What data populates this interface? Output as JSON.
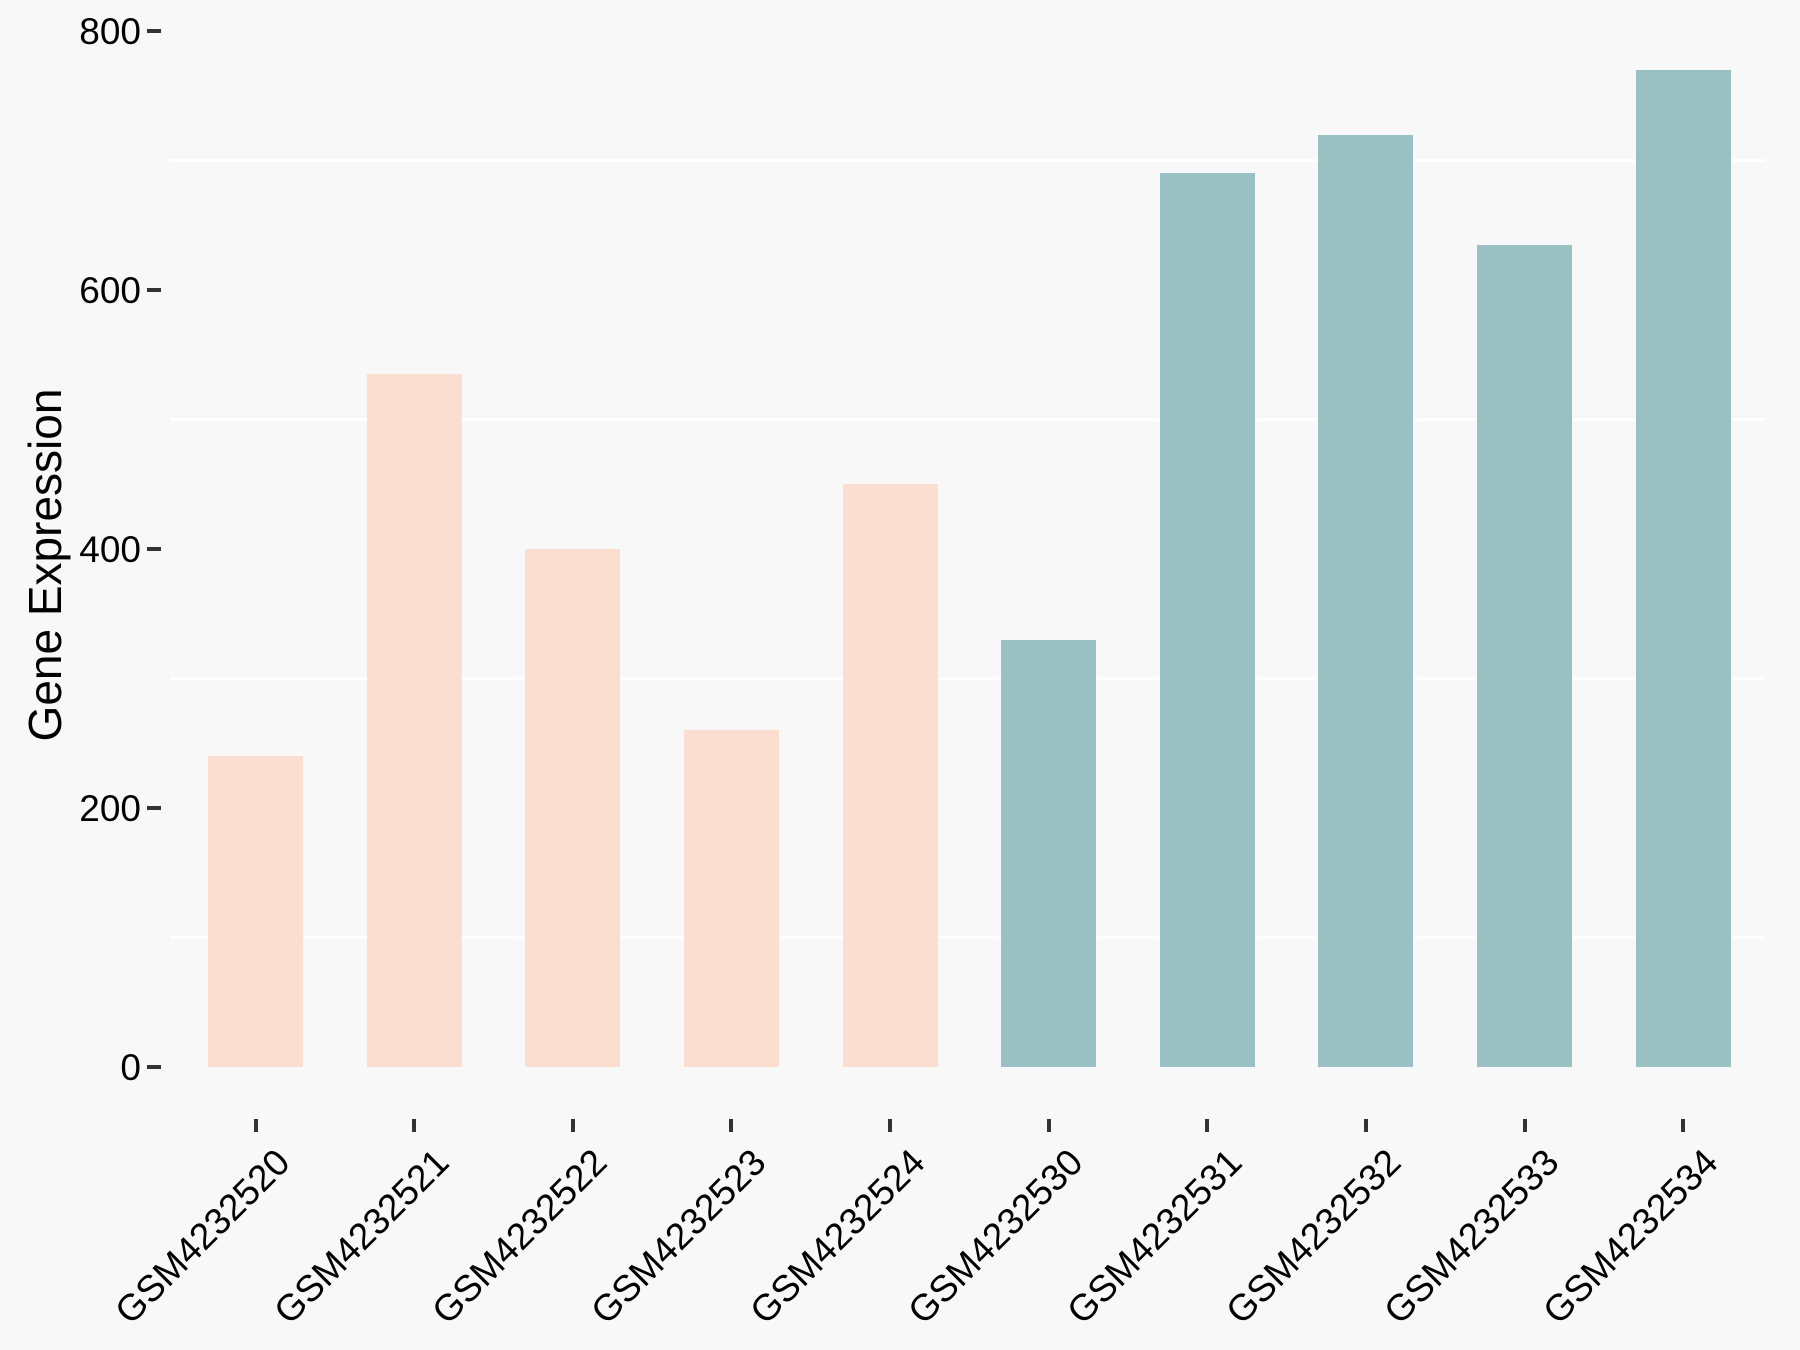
{
  "chart_data": {
    "type": "bar",
    "title": "",
    "xlabel": "",
    "ylabel": "Gene Expression",
    "categories": [
      "GSM4232520",
      "GSM4232521",
      "GSM4232522",
      "GSM4232523",
      "GSM4232524",
      "GSM4232530",
      "GSM4232531",
      "GSM4232532",
      "GSM4232533",
      "GSM4232534"
    ],
    "values": [
      240,
      535,
      400,
      260,
      450,
      330,
      690,
      720,
      635,
      770
    ],
    "bar_colors": [
      "#FCDED1",
      "#FCDED1",
      "#FCDED1",
      "#FCDED1",
      "#FCDED1",
      "#99C1C4",
      "#99C1C4",
      "#99C1C4",
      "#99C1C4",
      "#99C1C4"
    ],
    "ylim": [
      0,
      800
    ],
    "yticks": [
      0,
      200,
      400,
      600,
      800
    ],
    "minor_gridlines": [
      100,
      300,
      500,
      700
    ],
    "legend": "none",
    "grid": "minor horizontal white lines only",
    "background_color": "#F8F8F8",
    "gridline_color": "#FFFFFF",
    "axis_text_color": "#000000",
    "tick_mark_color": "#333333"
  }
}
